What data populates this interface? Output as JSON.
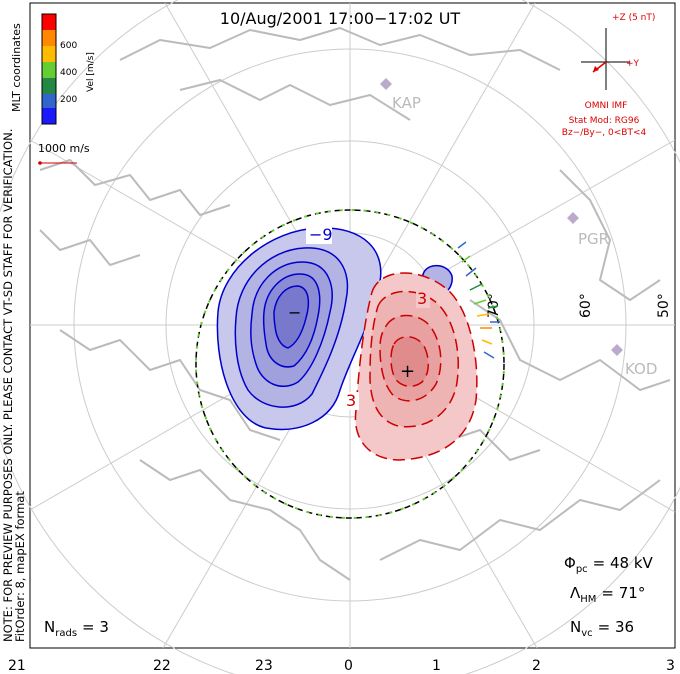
{
  "title": "10/Aug/2001 17:00−17:02 UT",
  "side_note": "NOTE: FOR PREVIEW PURPOSES ONLY. PLEASE CONTACT VT-SD STAFF FOR VERIFICATION.",
  "fit_order": "FitOrder: 8, mapEX format",
  "coords_label": "MLT coordinates",
  "colorbar": {
    "unit_label": "Vel [m/s]",
    "ticks": [
      "600",
      "400",
      "200"
    ],
    "colors": [
      "#ff0000",
      "#ff8800",
      "#ffbb00",
      "#66cc33",
      "#228844",
      "#3366cc",
      "#1a1aff"
    ]
  },
  "scale_label": "1000 m/s",
  "imf": {
    "z_label": "+Z (5 nT)",
    "y_label": "+Y",
    "source": "OMNI IMF",
    "model": "Stat Mod: RG96",
    "condition": "Bz−/By−, 0<BT<4",
    "color": "#dd0000"
  },
  "stations": [
    "KAP",
    "PGR",
    "KOD"
  ],
  "lat_labels": [
    "70°",
    "60°",
    "50°"
  ],
  "contour_labels": [
    "−9",
    "3",
    "3"
  ],
  "potential_markers": {
    "min": "−",
    "max": "+"
  },
  "mlt_ticks": [
    "21",
    "22",
    "23",
    "0",
    "1",
    "2",
    "3"
  ],
  "stats": {
    "phi_pc": {
      "symbol": "Φ",
      "sub": "pc",
      "value": "= 48 kV"
    },
    "lambda_hm": {
      "symbol": "Λ",
      "sub": "HM",
      "value": "= 71°"
    },
    "n_vc": {
      "symbol": "N",
      "sub": "vc",
      "value": "= 36"
    },
    "n_rads": {
      "symbol": "N",
      "sub": "rads",
      "value": "= 3"
    }
  },
  "colors": {
    "neg_contour": "#0000cc",
    "pos_contour": "#cc0000",
    "neg_fill": "#c8c8ec",
    "pos_fill": "#f4c8c8",
    "coast": "#bbbbbb",
    "grid": "#cccccc"
  }
}
